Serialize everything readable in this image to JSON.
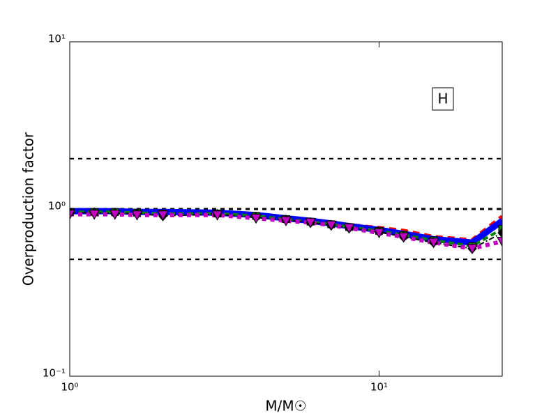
{
  "chart_data": {
    "type": "line",
    "xlabel": "M/M☉",
    "ylabel": "Overproduction factor",
    "annotation": "H",
    "xscale": "log",
    "yscale": "log",
    "xlim": [
      1,
      25
    ],
    "ylim": [
      0.1,
      10
    ],
    "xticks": [
      {
        "value": 1,
        "label": "10⁰"
      },
      {
        "value": 10,
        "label": "10¹"
      }
    ],
    "yticks": [
      {
        "value": 0.1,
        "label": "10⁻¹"
      },
      {
        "value": 1,
        "label": "10⁰"
      },
      {
        "value": 10,
        "label": "10¹"
      }
    ],
    "reference_lines": [
      2,
      1,
      0.5
    ],
    "x": [
      1,
      1.2,
      1.4,
      1.65,
      2,
      3,
      4,
      5,
      6,
      7,
      8,
      10,
      12,
      15,
      20,
      25
    ],
    "series": [
      {
        "color": "#ff0000",
        "dash": "10,7",
        "width": 6,
        "marker": "none",
        "values": [
          0.96,
          0.96,
          0.96,
          0.96,
          0.95,
          0.95,
          0.92,
          0.88,
          0.85,
          0.82,
          0.8,
          0.77,
          0.74,
          0.68,
          0.65,
          0.9
        ]
      },
      {
        "color": "#0000ff",
        "dash": "none",
        "width": 9,
        "marker": "none",
        "values": [
          0.97,
          0.97,
          0.97,
          0.96,
          0.96,
          0.95,
          0.92,
          0.88,
          0.85,
          0.82,
          0.79,
          0.75,
          0.71,
          0.66,
          0.63,
          0.85
        ]
      },
      {
        "color": "#008000",
        "dash": "8,5",
        "width": 4,
        "marker": "square",
        "values": [
          0.96,
          0.96,
          0.96,
          0.95,
          0.94,
          0.94,
          0.91,
          0.87,
          0.84,
          0.81,
          0.78,
          0.74,
          0.7,
          0.65,
          0.6,
          0.76
        ]
      },
      {
        "color": "#000000",
        "dash": "8,3,2,3",
        "width": 2,
        "marker": "diamond",
        "values": [
          0.95,
          0.95,
          0.94,
          0.94,
          0.91,
          0.93,
          0.89,
          0.86,
          0.83,
          0.8,
          0.77,
          0.73,
          0.68,
          0.63,
          0.58,
          0.72
        ]
      },
      {
        "color": "#bf00bf",
        "dash": "6,6",
        "width": 6,
        "marker": "triangle-down",
        "values": [
          0.93,
          0.93,
          0.93,
          0.92,
          0.92,
          0.92,
          0.88,
          0.85,
          0.83,
          0.8,
          0.77,
          0.72,
          0.68,
          0.63,
          0.58,
          0.64
        ]
      }
    ]
  }
}
